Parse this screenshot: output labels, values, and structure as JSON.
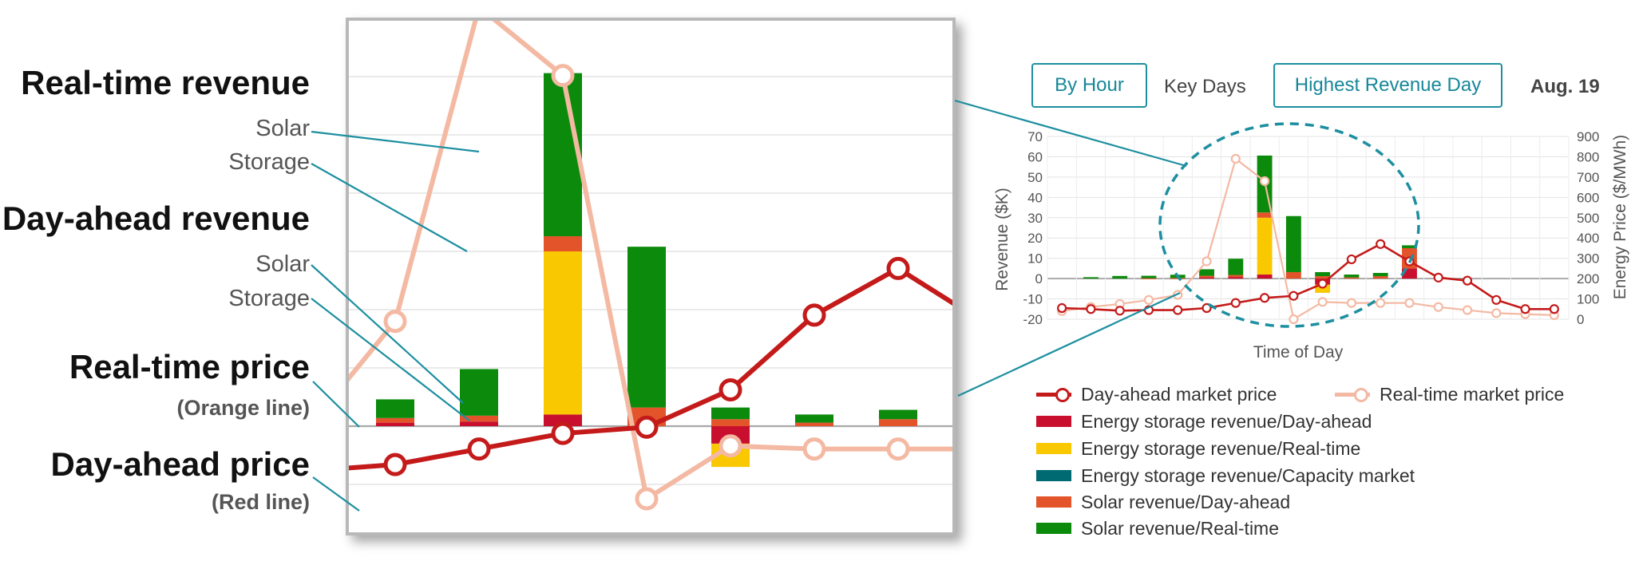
{
  "annotations": {
    "rt_revenue": "Real-time revenue",
    "rt_solar": "Solar",
    "rt_storage": "Storage",
    "da_revenue": "Day-ahead revenue",
    "da_solar": "Solar",
    "da_storage": "Storage",
    "rt_price": "Real-time price",
    "rt_price_note": "(Orange line)",
    "da_price": "Day-ahead price",
    "da_price_note": "(Red line)"
  },
  "controls": {
    "by_hour": "By Hour",
    "key_days": "Key Days",
    "highest_day": "Highest Revenue Day",
    "date": "Aug. 19"
  },
  "colors": {
    "da_price": "#c41a1a",
    "rt_price": "#f4b9a3",
    "storage_da": "#c8102e",
    "storage_rt": "#f9c800",
    "storage_cap": "#006a72",
    "solar_da": "#e3542a",
    "solar_rt": "#0b8a0b",
    "callout": "#1d8fa0"
  },
  "legend": [
    {
      "label": "Day-ahead market price",
      "kind": "line",
      "color": "#c41a1a"
    },
    {
      "label": "Real-time market price",
      "kind": "line",
      "color": "#f4b9a3"
    },
    {
      "label": "Energy storage revenue/Day-ahead",
      "kind": "box",
      "color": "#c8102e"
    },
    {
      "label": "Energy storage revenue/Real-time",
      "kind": "box",
      "color": "#f9c800"
    },
    {
      "label": "Energy storage revenue/Capacity market",
      "kind": "box",
      "color": "#006a72"
    },
    {
      "label": "Solar revenue/Day-ahead",
      "kind": "box",
      "color": "#e3542a"
    },
    {
      "label": "Solar revenue/Real-time",
      "kind": "box",
      "color": "#0b8a0b"
    }
  ],
  "chart_data": {
    "type": "bar",
    "xlabel": "Time of Day",
    "ylabel": "Revenue ($K)",
    "y2label": "Energy Price ($/MWh)",
    "ylim": [
      -20,
      70
    ],
    "y2lim": [
      0,
      900
    ],
    "yticks": [
      70,
      60,
      50,
      40,
      30,
      20,
      10,
      0,
      -10,
      -20
    ],
    "y2ticks": [
      900,
      800,
      700,
      600,
      500,
      400,
      300,
      200,
      100,
      0
    ],
    "stacked": true,
    "grid": true,
    "bar_slots": [
      1,
      2,
      3,
      4,
      5,
      6,
      7,
      8,
      9,
      10,
      11,
      12
    ],
    "series": [
      {
        "name": "Energy storage revenue/Day-ahead",
        "values": [
          0,
          0,
          0,
          0,
          0.6,
          0.8,
          2.0,
          0,
          -3.0,
          0,
          0,
          5.0
        ]
      },
      {
        "name": "Energy storage revenue/Real-time",
        "values": [
          0,
          0,
          0,
          0,
          0,
          0,
          28.0,
          0,
          -4.0,
          0,
          0,
          0
        ]
      },
      {
        "name": "Energy storage revenue/Capacity market",
        "values": [
          0,
          0,
          0,
          0,
          0,
          0,
          0,
          0,
          0,
          0,
          0,
          0
        ]
      },
      {
        "name": "Solar revenue/Day-ahead",
        "values": [
          0,
          0,
          0.2,
          0.3,
          0.8,
          1.0,
          2.6,
          3.2,
          1.2,
          0.6,
          1.2,
          10.0
        ]
      },
      {
        "name": "Solar revenue/Real-time",
        "values": [
          0.7,
          1.3,
          1.2,
          1.6,
          3.2,
          8.0,
          28.0,
          27.6,
          2.0,
          1.4,
          1.6,
          1.4
        ]
      }
    ],
    "price_slots": [
      0,
      1,
      2,
      3,
      4,
      5,
      6,
      7,
      8,
      9,
      10,
      11,
      12,
      13,
      14,
      15,
      16,
      17
    ],
    "price_series": [
      {
        "name": "Day-ahead market price",
        "values": [
          55,
          50,
          42,
          45,
          45,
          55,
          80,
          105,
          115,
          175,
          295,
          370,
          285,
          205,
          190,
          95,
          50,
          50
        ]
      },
      {
        "name": "Real-time market price",
        "values": [
          40,
          60,
          75,
          95,
          120,
          285,
          790,
          680,
          0,
          85,
          80,
          80,
          80,
          60,
          45,
          30,
          25,
          20
        ]
      }
    ]
  }
}
